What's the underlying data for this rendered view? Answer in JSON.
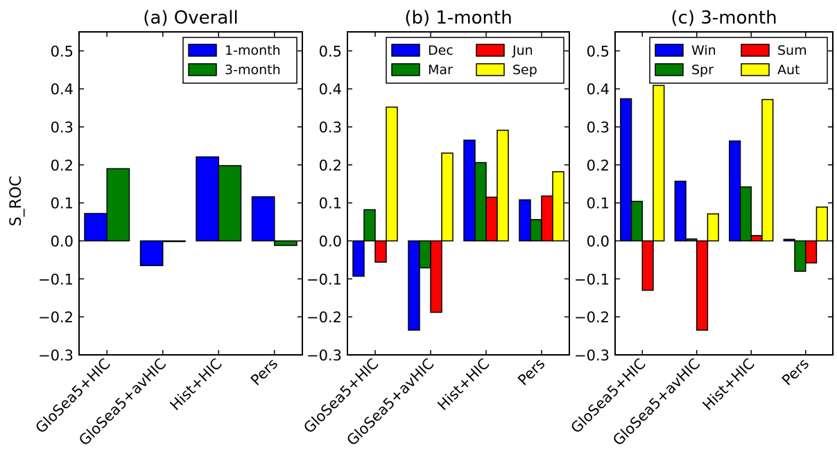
{
  "ylabel": "S_ROC",
  "chart_data": [
    {
      "type": "bar",
      "title": "(a) Overall",
      "categories": [
        "GloSea5+HIC",
        "GloSea5+avHIC",
        "Hist+HIC",
        "Pers"
      ],
      "ylabel": "S_ROC",
      "ylim": [
        -0.3,
        0.55
      ],
      "yticks": [
        "0.5",
        "0.4",
        "0.3",
        "0.2",
        "0.1",
        "0.0",
        "−0.1",
        "−0.2",
        "−0.3"
      ],
      "legend_position": "top-right",
      "legend_columns": 1,
      "series": [
        {
          "name": "1-month",
          "color": "#0000ff",
          "values": [
            0.072,
            -0.065,
            0.221,
            0.116
          ]
        },
        {
          "name": "3-month",
          "color": "#008000",
          "values": [
            0.19,
            0.0,
            0.198,
            -0.012
          ]
        }
      ]
    },
    {
      "type": "bar",
      "title": "(b) 1-month",
      "categories": [
        "GloSea5+HIC",
        "GloSea5+avHIC",
        "Hist+HIC",
        "Pers"
      ],
      "ylim": [
        -0.3,
        0.55
      ],
      "yticks": [
        "0.5",
        "0.4",
        "0.3",
        "0.2",
        "0.1",
        "0.0",
        "−0.1",
        "−0.2",
        "−0.3"
      ],
      "legend_position": "top-right",
      "legend_columns": 2,
      "series": [
        {
          "name": "Dec",
          "color": "#0000ff",
          "values": [
            -0.093,
            -0.235,
            0.265,
            0.108
          ]
        },
        {
          "name": "Mar",
          "color": "#008000",
          "values": [
            0.082,
            -0.071,
            0.206,
            0.056
          ]
        },
        {
          "name": "Jun",
          "color": "#ff0000",
          "values": [
            -0.056,
            -0.188,
            0.115,
            0.118
          ]
        },
        {
          "name": "Sep",
          "color": "#ffff00",
          "values": [
            0.352,
            0.231,
            0.291,
            0.182
          ]
        }
      ]
    },
    {
      "type": "bar",
      "title": "(c) 3-month",
      "categories": [
        "GloSea5+HIC",
        "GloSea5+avHIC",
        "Hist+HIC",
        "Pers"
      ],
      "ylim": [
        -0.3,
        0.55
      ],
      "yticks": [
        "0.5",
        "0.4",
        "0.3",
        "0.2",
        "0.1",
        "0.0",
        "−0.1",
        "−0.2",
        "−0.3"
      ],
      "legend_position": "top-right",
      "legend_columns": 2,
      "series": [
        {
          "name": "Win",
          "color": "#0000ff",
          "values": [
            0.374,
            0.157,
            0.263,
            0.004
          ]
        },
        {
          "name": "Spr",
          "color": "#008000",
          "values": [
            0.104,
            0.005,
            0.142,
            -0.08
          ]
        },
        {
          "name": "Sum",
          "color": "#ff0000",
          "values": [
            -0.13,
            -0.235,
            0.014,
            -0.058
          ]
        },
        {
          "name": "Aut",
          "color": "#ffff00",
          "values": [
            0.409,
            0.071,
            0.372,
            0.089
          ]
        }
      ]
    }
  ]
}
